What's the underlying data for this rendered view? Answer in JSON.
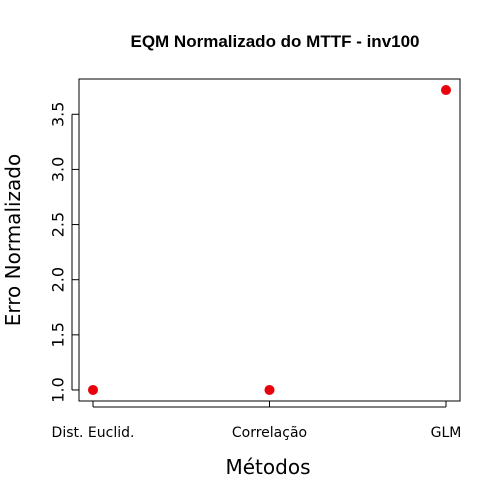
{
  "chart_data": {
    "type": "scatter",
    "title": "EQM Normalizado do MTTF - inv100",
    "xlabel": "Métodos",
    "ylabel": "Erro Normalizado",
    "categories": [
      "Dist. Euclid.",
      "Correlação",
      "GLM"
    ],
    "series": [
      {
        "values": [
          1.0,
          1.0,
          3.72
        ]
      }
    ],
    "ylim": [
      0.9,
      3.82
    ],
    "yticks": [
      "1.0",
      "1.5",
      "2.0",
      "2.5",
      "3.0",
      "3.5"
    ],
    "grid": false,
    "point_color": "#e8000b"
  }
}
